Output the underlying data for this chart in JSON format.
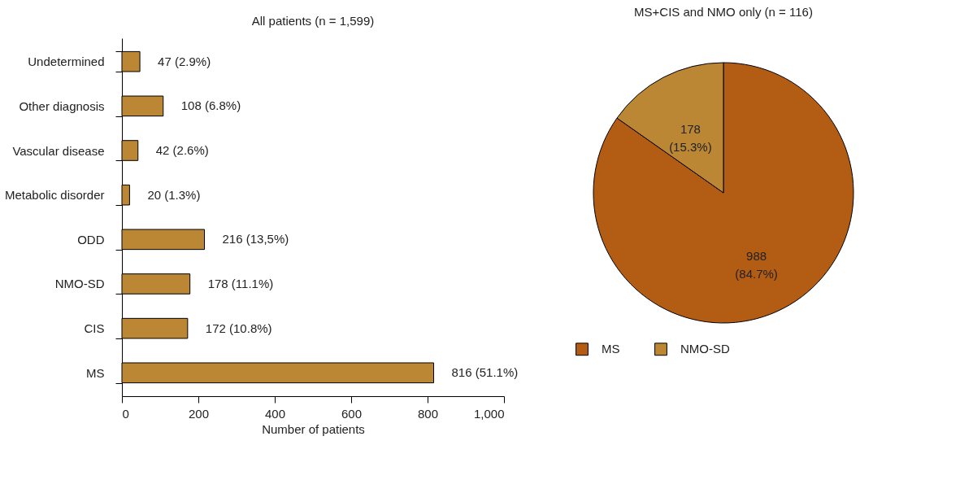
{
  "chart_data": [
    {
      "type": "bar",
      "orientation": "horizontal",
      "title": "All patients (n = 1,599)",
      "xlabel": "Number of patients",
      "categories": [
        "Undetermined",
        "Other diagnosis",
        "Vascular disease",
        "Metabolic disorder",
        "ODD",
        "NMO-SD",
        "CIS",
        "MS"
      ],
      "values": [
        47,
        108,
        42,
        20,
        216,
        178,
        172,
        816
      ],
      "value_labels": [
        "47 (2.9%)",
        "108 (6.8%)",
        "42 (2.6%)",
        "20 (1.3%)",
        "216 (13,5%)",
        "178 (11.1%)",
        "172 (10.8%)",
        "816 (51.1%)"
      ],
      "color": "#bb8734",
      "xlim": [
        0,
        1000
      ],
      "xticks": [
        0,
        200,
        400,
        600,
        800,
        {
          "value": 1000,
          "label": "1,000"
        }
      ],
      "grid": false,
      "legend": false
    },
    {
      "type": "pie",
      "title": "MS+CIS and NMO only (n = 116)",
      "categories": [
        "MS",
        "NMO-SD"
      ],
      "values": [
        988,
        178
      ],
      "colors": [
        "#b35c14",
        "#bb8734"
      ],
      "value_labels": [
        "988 (84.7%)",
        "178 (15.3%)"
      ],
      "legend": "bottom"
    }
  ]
}
